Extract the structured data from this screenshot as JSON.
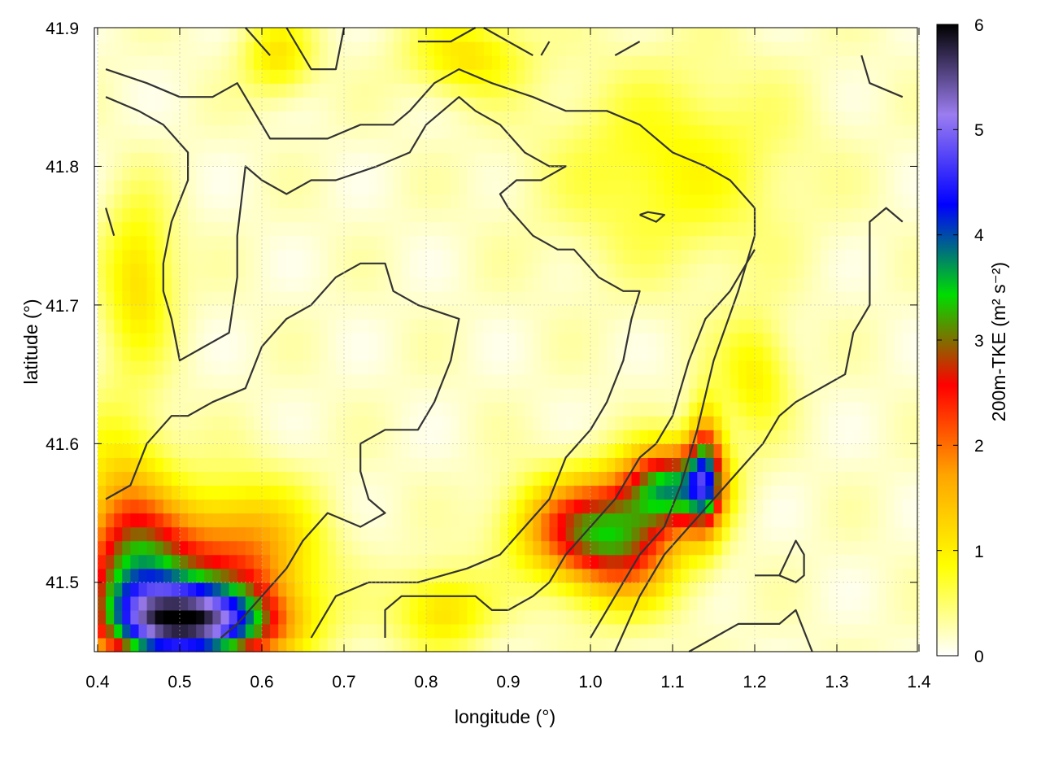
{
  "chart_data": {
    "type": "heatmap",
    "title": "",
    "xlabel": "longitude (°)",
    "ylabel": "latitude (°)",
    "xlim": [
      0.4,
      1.4
    ],
    "ylim": [
      41.45,
      41.9
    ],
    "x_ticks": [
      0.4,
      0.5,
      0.6,
      0.7,
      0.8,
      0.9,
      1.0,
      1.1,
      1.2,
      1.3,
      1.4
    ],
    "x_tick_labels": [
      "0.4",
      "0.5",
      "0.6",
      "0.7",
      "0.8",
      "0.9",
      "1.0",
      "1.1",
      "1.2",
      "1.3",
      "1.4"
    ],
    "y_ticks": [
      41.5,
      41.6,
      41.7,
      41.8,
      41.9
    ],
    "y_tick_labels": [
      "41.5",
      "41.6",
      "41.7",
      "41.8",
      "41.9"
    ],
    "grid": true,
    "colorbar": {
      "label": "200m-TKE (m² s⁻²)",
      "range": [
        0,
        6
      ],
      "ticks": [
        0,
        1,
        2,
        3,
        4,
        5,
        6
      ],
      "tick_labels": [
        "0",
        "1",
        "2",
        "3",
        "4",
        "5",
        "6"
      ],
      "colors": [
        "#ffffff",
        "#ffff00",
        "#ffa500",
        "#ff0000",
        "#00dd00",
        "#0000ff",
        "#9b7df0",
        "#000000"
      ]
    },
    "hotspots": [
      {
        "x": 0.52,
        "y": 41.47,
        "value": 4.5,
        "sx": 0.07,
        "sy": 0.02
      },
      {
        "x": 0.46,
        "y": 41.5,
        "value": 2.6,
        "sx": 0.05,
        "sy": 0.035
      },
      {
        "x": 0.58,
        "y": 41.52,
        "value": 1.7,
        "sx": 0.06,
        "sy": 0.035
      },
      {
        "x": 0.43,
        "y": 41.55,
        "value": 1.2,
        "sx": 0.04,
        "sy": 0.05
      },
      {
        "x": 0.45,
        "y": 41.72,
        "value": 1.0,
        "sx": 0.03,
        "sy": 0.04
      },
      {
        "x": 1.1,
        "y": 41.57,
        "value": 3.0,
        "sx": 0.04,
        "sy": 0.02
      },
      {
        "x": 1.04,
        "y": 41.53,
        "value": 2.4,
        "sx": 0.05,
        "sy": 0.03
      },
      {
        "x": 1.14,
        "y": 41.58,
        "value": 2.6,
        "sx": 0.015,
        "sy": 0.03
      },
      {
        "x": 0.97,
        "y": 41.54,
        "value": 1.6,
        "sx": 0.05,
        "sy": 0.025
      },
      {
        "x": 1.1,
        "y": 41.8,
        "value": 0.7,
        "sx": 0.1,
        "sy": 0.05
      },
      {
        "x": 0.85,
        "y": 41.88,
        "value": 0.9,
        "sx": 0.05,
        "sy": 0.02
      },
      {
        "x": 0.62,
        "y": 41.88,
        "value": 0.9,
        "sx": 0.03,
        "sy": 0.02
      },
      {
        "x": 0.82,
        "y": 41.48,
        "value": 1.0,
        "sx": 0.04,
        "sy": 0.02
      },
      {
        "x": 1.2,
        "y": 41.65,
        "value": 0.8,
        "sx": 0.03,
        "sy": 0.03
      }
    ],
    "contours": [
      [
        [
          0.41,
          41.87
        ],
        [
          0.46,
          41.86
        ],
        [
          0.5,
          41.85
        ],
        [
          0.54,
          41.85
        ],
        [
          0.57,
          41.86
        ],
        [
          0.6,
          41.83
        ],
        [
          0.61,
          41.82
        ],
        [
          0.64,
          41.82
        ],
        [
          0.68,
          41.82
        ],
        [
          0.72,
          41.83
        ],
        [
          0.74,
          41.83
        ],
        [
          0.76,
          41.83
        ],
        [
          0.78,
          41.84
        ],
        [
          0.81,
          41.86
        ],
        [
          0.84,
          41.87
        ],
        [
          0.88,
          41.86
        ],
        [
          0.93,
          41.85
        ],
        [
          0.97,
          41.84
        ],
        [
          1.02,
          41.84
        ],
        [
          1.06,
          41.83
        ],
        [
          1.1,
          41.81
        ],
        [
          1.14,
          41.8
        ],
        [
          1.17,
          41.79
        ],
        [
          1.2,
          41.77
        ],
        [
          1.2,
          41.75
        ],
        [
          1.18,
          41.71
        ],
        [
          1.15,
          41.66
        ],
        [
          1.13,
          41.61
        ],
        [
          1.11,
          41.57
        ],
        [
          1.09,
          41.54
        ],
        [
          1.06,
          41.52
        ],
        [
          1.04,
          41.5
        ],
        [
          1.02,
          41.48
        ],
        [
          1.0,
          41.46
        ]
      ],
      [
        [
          0.41,
          41.85
        ],
        [
          0.45,
          41.84
        ],
        [
          0.48,
          41.83
        ],
        [
          0.51,
          41.81
        ],
        [
          0.51,
          41.79
        ],
        [
          0.49,
          41.76
        ],
        [
          0.48,
          41.73
        ],
        [
          0.48,
          41.71
        ],
        [
          0.49,
          41.69
        ],
        [
          0.5,
          41.66
        ],
        [
          0.53,
          41.67
        ],
        [
          0.56,
          41.68
        ],
        [
          0.57,
          41.72
        ],
        [
          0.57,
          41.75
        ],
        [
          0.58,
          41.8
        ],
        [
          0.6,
          41.79
        ],
        [
          0.63,
          41.78
        ],
        [
          0.66,
          41.79
        ],
        [
          0.69,
          41.79
        ],
        [
          0.74,
          41.8
        ],
        [
          0.78,
          41.81
        ],
        [
          0.8,
          41.83
        ],
        [
          0.84,
          41.85
        ],
        [
          0.86,
          41.84
        ],
        [
          0.89,
          41.83
        ],
        [
          0.92,
          41.81
        ],
        [
          0.95,
          41.8
        ],
        [
          0.97,
          41.8
        ],
        [
          0.94,
          41.79
        ],
        [
          0.91,
          41.79
        ],
        [
          0.89,
          41.78
        ],
        [
          0.9,
          41.77
        ],
        [
          0.93,
          41.75
        ],
        [
          0.96,
          41.74
        ],
        [
          0.98,
          41.74
        ],
        [
          1.01,
          41.72
        ],
        [
          1.04,
          41.71
        ],
        [
          1.06,
          41.71
        ],
        [
          1.05,
          41.69
        ],
        [
          1.04,
          41.66
        ],
        [
          1.02,
          41.63
        ],
        [
          1.0,
          41.61
        ],
        [
          0.97,
          41.59
        ],
        [
          0.95,
          41.56
        ],
        [
          0.92,
          41.54
        ],
        [
          0.89,
          41.52
        ],
        [
          0.85,
          41.51
        ],
        [
          0.79,
          41.5
        ],
        [
          0.73,
          41.5
        ],
        [
          0.69,
          41.49
        ],
        [
          0.67,
          41.47
        ],
        [
          0.66,
          41.46
        ]
      ],
      [
        [
          0.41,
          41.56
        ],
        [
          0.44,
          41.57
        ],
        [
          0.46,
          41.6
        ],
        [
          0.49,
          41.62
        ],
        [
          0.51,
          41.62
        ],
        [
          0.54,
          41.63
        ],
        [
          0.58,
          41.64
        ],
        [
          0.6,
          41.67
        ],
        [
          0.63,
          41.69
        ],
        [
          0.66,
          41.7
        ],
        [
          0.69,
          41.72
        ],
        [
          0.72,
          41.73
        ],
        [
          0.75,
          41.73
        ],
        [
          0.76,
          41.71
        ],
        [
          0.79,
          41.7
        ],
        [
          0.84,
          41.69
        ],
        [
          0.83,
          41.66
        ],
        [
          0.81,
          41.63
        ],
        [
          0.79,
          41.61
        ],
        [
          0.75,
          41.61
        ],
        [
          0.72,
          41.6
        ],
        [
          0.72,
          41.58
        ],
        [
          0.73,
          41.56
        ],
        [
          0.75,
          41.55
        ],
        [
          0.72,
          41.54
        ],
        [
          0.68,
          41.55
        ],
        [
          0.65,
          41.53
        ],
        [
          0.63,
          41.51
        ],
        [
          0.6,
          41.49
        ],
        [
          0.57,
          41.47
        ],
        [
          0.55,
          41.46
        ]
      ],
      [
        [
          0.75,
          41.46
        ],
        [
          0.75,
          41.48
        ],
        [
          0.77,
          41.49
        ],
        [
          0.82,
          41.49
        ],
        [
          0.86,
          41.49
        ],
        [
          0.88,
          41.48
        ],
        [
          0.9,
          41.48
        ],
        [
          0.93,
          41.49
        ],
        [
          0.95,
          41.5
        ],
        [
          0.97,
          41.52
        ],
        [
          1.0,
          41.54
        ],
        [
          1.03,
          41.56
        ],
        [
          1.06,
          41.59
        ],
        [
          1.08,
          41.6
        ],
        [
          1.1,
          41.62
        ],
        [
          1.12,
          41.66
        ],
        [
          1.14,
          41.69
        ],
        [
          1.17,
          41.71
        ],
        [
          1.2,
          41.74
        ]
      ],
      [
        [
          1.12,
          41.45
        ],
        [
          1.15,
          41.46
        ],
        [
          1.18,
          41.47
        ],
        [
          1.23,
          41.47
        ],
        [
          1.25,
          41.48
        ],
        [
          1.27,
          41.45
        ]
      ],
      [
        [
          1.03,
          41.45
        ],
        [
          1.06,
          41.49
        ],
        [
          1.09,
          41.52
        ],
        [
          1.12,
          41.54
        ],
        [
          1.15,
          41.56
        ],
        [
          1.18,
          41.58
        ],
        [
          1.21,
          41.6
        ],
        [
          1.23,
          41.62
        ],
        [
          1.25,
          41.63
        ],
        [
          1.28,
          41.64
        ],
        [
          1.31,
          41.65
        ],
        [
          1.32,
          41.68
        ],
        [
          1.34,
          41.7
        ],
        [
          1.34,
          41.72
        ],
        [
          1.34,
          41.76
        ],
        [
          1.36,
          41.77
        ],
        [
          1.38,
          41.76
        ]
      ],
      [
        [
          1.2,
          41.505
        ],
        [
          1.23,
          41.505
        ],
        [
          1.25,
          41.53
        ],
        [
          1.26,
          41.52
        ],
        [
          1.26,
          41.505
        ],
        [
          1.25,
          41.5
        ],
        [
          1.23,
          41.505
        ]
      ],
      [
        [
          1.06,
          41.765
        ],
        [
          1.08,
          41.76
        ],
        [
          1.09,
          41.765
        ],
        [
          1.07,
          41.767
        ],
        [
          1.06,
          41.765
        ]
      ],
      [
        [
          0.41,
          41.77
        ],
        [
          0.42,
          41.75
        ]
      ],
      [
        [
          0.63,
          41.9
        ],
        [
          0.66,
          41.87
        ],
        [
          0.69,
          41.87
        ],
        [
          0.7,
          41.9
        ]
      ],
      [
        [
          0.58,
          41.9
        ],
        [
          0.61,
          41.88
        ]
      ],
      [
        [
          0.79,
          41.89
        ],
        [
          0.83,
          41.89
        ],
        [
          0.86,
          41.9
        ]
      ],
      [
        [
          0.87,
          41.9
        ],
        [
          0.93,
          41.88
        ]
      ],
      [
        [
          0.94,
          41.88
        ],
        [
          0.95,
          41.89
        ]
      ],
      [
        [
          1.03,
          41.88
        ],
        [
          1.06,
          41.89
        ]
      ],
      [
        [
          1.33,
          41.88
        ],
        [
          1.34,
          41.86
        ],
        [
          1.38,
          41.85
        ]
      ]
    ]
  }
}
